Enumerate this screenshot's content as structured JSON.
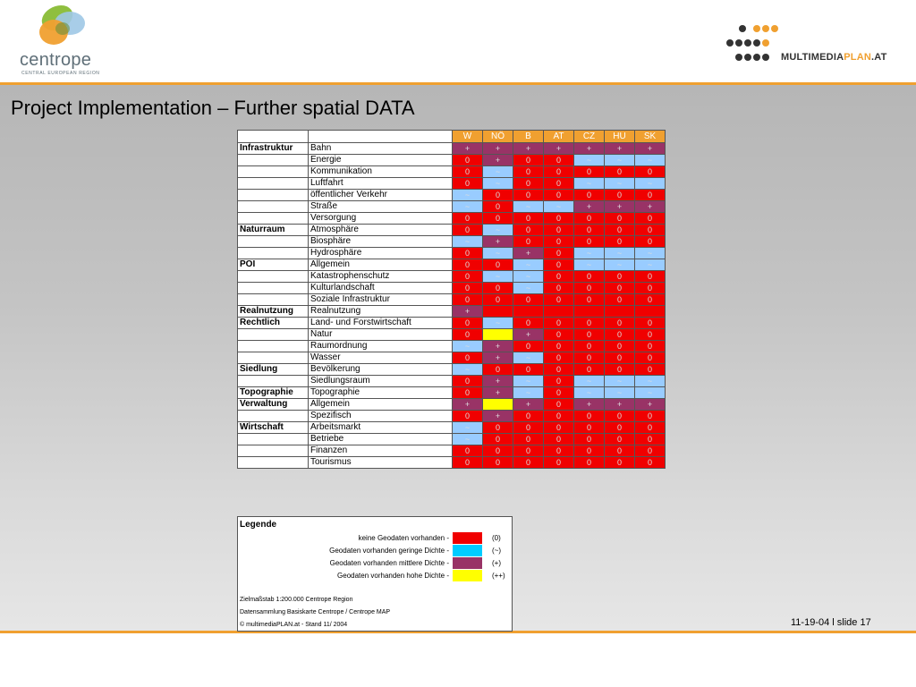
{
  "logo_left": {
    "name": "centrope",
    "subtitle": "CENTRAL EUROPEAN REGION"
  },
  "logo_right": {
    "prefix": "MULTIMEDIA",
    "plan": "PLAN",
    "suffix": ".AT"
  },
  "title": "Project Implementation – Further spatial DATA",
  "columns": [
    "W",
    "NÖ",
    "B",
    "AT",
    "CZ",
    "HU",
    "SK"
  ],
  "rows": [
    {
      "cat": "Infrastruktur",
      "sub": "Bahn",
      "v": [
        "+",
        "+",
        "+",
        "+",
        "+",
        "+",
        "+"
      ]
    },
    {
      "cat": "",
      "sub": "Energie",
      "v": [
        "0",
        "+",
        "0",
        "0",
        "~",
        "~",
        "~"
      ]
    },
    {
      "cat": "",
      "sub": "Kommunikation",
      "v": [
        "0",
        "~",
        "0",
        "0",
        "0",
        "0",
        "0"
      ]
    },
    {
      "cat": "",
      "sub": "Luftfahrt",
      "v": [
        "0",
        "~",
        "0",
        "0",
        "~",
        "~",
        "~"
      ]
    },
    {
      "cat": "",
      "sub": "öffentlicher Verkehr",
      "v": [
        "~",
        "0",
        "0",
        "0",
        "0",
        "0",
        "0"
      ]
    },
    {
      "cat": "",
      "sub": "Straße",
      "v": [
        "~",
        "0",
        "~",
        "~",
        "+",
        "+",
        "+"
      ]
    },
    {
      "cat": "",
      "sub": "Versorgung",
      "v": [
        "0",
        "0",
        "0",
        "0",
        "0",
        "0",
        "0"
      ]
    },
    {
      "cat": "Naturraum",
      "sub": "Atmosphäre",
      "v": [
        "0",
        "~",
        "0",
        "0",
        "0",
        "0",
        "0"
      ]
    },
    {
      "cat": "",
      "sub": "Biosphäre",
      "v": [
        "~",
        "+",
        "0",
        "0",
        "0",
        "0",
        "0"
      ]
    },
    {
      "cat": "",
      "sub": "Hydrosphäre",
      "v": [
        "0",
        "~",
        "+",
        "0",
        "~",
        "~",
        "~"
      ]
    },
    {
      "cat": "POI",
      "sub": "Allgemein",
      "v": [
        "0",
        "0",
        "~",
        "0",
        "~",
        "~",
        "~"
      ]
    },
    {
      "cat": "",
      "sub": "Katastrophenschutz",
      "v": [
        "0",
        "~",
        "~",
        "0",
        "0",
        "0",
        "0"
      ]
    },
    {
      "cat": "",
      "sub": "Kulturlandschaft",
      "v": [
        "0",
        "0",
        "~",
        "0",
        "0",
        "0",
        "0"
      ]
    },
    {
      "cat": "",
      "sub": "Soziale Infrastruktur",
      "v": [
        "0",
        "0",
        "0",
        "0",
        "0",
        "0",
        "0"
      ]
    },
    {
      "cat": "Realnutzung",
      "sub": "Realnutzung",
      "v": [
        "+",
        "",
        "",
        "",
        "",
        "",
        ""
      ]
    },
    {
      "cat": "Rechtlich",
      "sub": "Land- und Forstwirtschaft",
      "v": [
        "0",
        "~",
        "0",
        "0",
        "0",
        "0",
        "0"
      ]
    },
    {
      "cat": "",
      "sub": "Natur",
      "v": [
        "0",
        "++",
        "+",
        "0",
        "0",
        "0",
        "0"
      ]
    },
    {
      "cat": "",
      "sub": "Raumordnung",
      "v": [
        "~",
        "+",
        "0",
        "0",
        "0",
        "0",
        "0"
      ]
    },
    {
      "cat": "",
      "sub": "Wasser",
      "v": [
        "0",
        "+",
        "~",
        "0",
        "0",
        "0",
        "0"
      ]
    },
    {
      "cat": "Siedlung",
      "sub": "Bevölkerung",
      "v": [
        "~",
        "0",
        "0",
        "0",
        "0",
        "0",
        "0"
      ]
    },
    {
      "cat": "",
      "sub": "Siedlungsraum",
      "v": [
        "0",
        "+",
        "~",
        "0",
        "~",
        "~",
        "~"
      ]
    },
    {
      "cat": "Topographie",
      "sub": "Topographie",
      "v": [
        "0",
        "+",
        "~",
        "0",
        "~",
        "~",
        "~"
      ]
    },
    {
      "cat": "Verwaltung",
      "sub": "Allgemein",
      "v": [
        "+",
        "++",
        "+",
        "0",
        "+",
        "+",
        "+"
      ]
    },
    {
      "cat": "",
      "sub": "Spezifisch",
      "v": [
        "0",
        "+",
        "0",
        "0",
        "0",
        "0",
        "0"
      ]
    },
    {
      "cat": "Wirtschaft",
      "sub": "Arbeitsmarkt",
      "v": [
        "~",
        "0",
        "0",
        "0",
        "0",
        "0",
        "0"
      ]
    },
    {
      "cat": "",
      "sub": "Betriebe",
      "v": [
        "~",
        "0",
        "0",
        "0",
        "0",
        "0",
        "0"
      ]
    },
    {
      "cat": "",
      "sub": "Finanzen",
      "v": [
        "0",
        "0",
        "0",
        "0",
        "0",
        "0",
        "0"
      ]
    },
    {
      "cat": "",
      "sub": "Tourismus",
      "v": [
        "0",
        "0",
        "0",
        "0",
        "0",
        "0",
        "0"
      ]
    }
  ],
  "colors": {
    "0": "#f00000",
    "~": "#99ccff",
    "+": "#993366",
    "++": "#ffff00",
    "": "#f00000",
    "accent": "#f0a030"
  },
  "legend": {
    "title": "Legende",
    "items": [
      {
        "label": "keine Geodaten vorhanden -",
        "code": "(0)",
        "key": "0"
      },
      {
        "label": "Geodaten vorhanden geringe Dichte -",
        "code": "(~)",
        "key": "~"
      },
      {
        "label": "Geodaten vorhanden mittlere Dichte -",
        "code": "(+)",
        "key": "+"
      },
      {
        "label": "Geodaten vorhanden hohe Dichte -",
        "code": "(++)",
        "key": "++"
      }
    ],
    "notes": [
      "Zielmaßstab 1:200.000 Centrope Region",
      "Datensammlung Basiskarte Centrope / Centrope MAP",
      "© multimediaPLAN.at - Stand 11/ 2004"
    ]
  },
  "footer": "11-19-04  l  slide 17"
}
